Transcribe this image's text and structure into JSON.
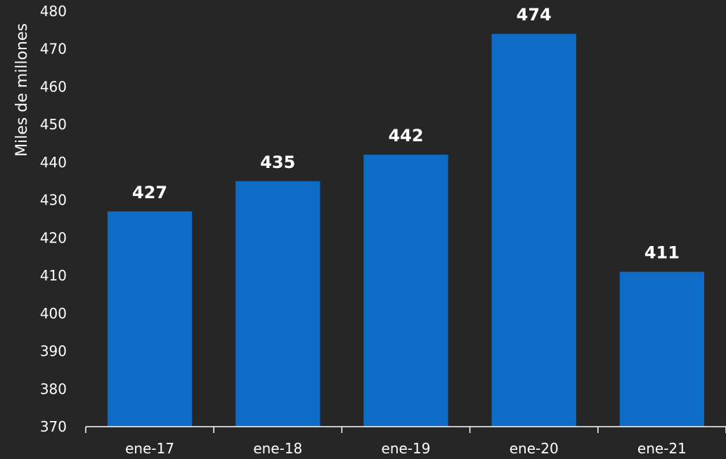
{
  "chart_data": {
    "type": "bar",
    "title": "",
    "xlabel": "",
    "ylabel": "Miles de millones",
    "ylim": [
      370,
      480
    ],
    "yticks": [
      370,
      380,
      390,
      400,
      410,
      420,
      430,
      440,
      450,
      460,
      470,
      480
    ],
    "categories": [
      "ene-17",
      "ene-18",
      "ene-19",
      "ene-20",
      "ene-21"
    ],
    "values": [
      427,
      435,
      442,
      474,
      411
    ],
    "value_labels": [
      "427",
      "435",
      "442",
      "474",
      "411"
    ],
    "grid": false,
    "legend": "none",
    "colors": {
      "bar": "#0F6CC6",
      "background": "#262626",
      "text": "#FFFFFF",
      "axis": "#FFFFFF"
    }
  }
}
